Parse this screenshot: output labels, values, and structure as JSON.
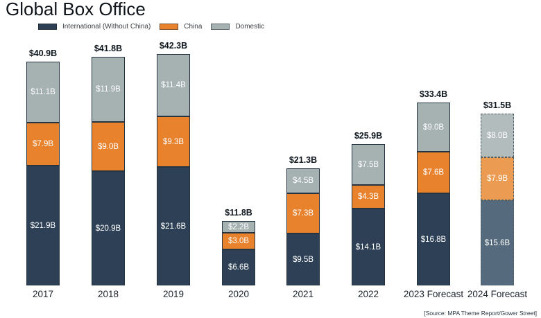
{
  "title": "Global Box Office",
  "source_note": "[Source: MPA Theme Report/Gower Street]",
  "colors": {
    "international": "#2d4055",
    "china": "#e8822d",
    "domestic": "#a6b1b2",
    "international_forecast": "#556b7d",
    "china_forecast": "#ec9c52",
    "domestic_forecast": "#b2bcbd",
    "background": "#ffffff"
  },
  "legend": [
    {
      "label": "International (Without China)",
      "color": "#2d4055"
    },
    {
      "label": "China",
      "color": "#e8822d"
    },
    {
      "label": "Domestic",
      "color": "#a6b1b2"
    }
  ],
  "chart_data": {
    "type": "bar",
    "stacked": true,
    "title": "Global Box Office",
    "xlabel": "",
    "ylabel": "",
    "units": "USD billions",
    "y_axis_visible": false,
    "grid": false,
    "legend_position": "top-left",
    "categories": [
      "2017",
      "2018",
      "2019",
      "2020",
      "2021",
      "2022",
      "2023 Forecast",
      "2024 Forecast"
    ],
    "is_forecast_style": [
      false,
      false,
      false,
      false,
      false,
      false,
      false,
      true
    ],
    "series": [
      {
        "key": "international",
        "name": "International (Without China)",
        "color": "#2d4055",
        "forecast_color": "#556b7d",
        "values": [
          21.9,
          20.9,
          21.6,
          6.6,
          9.5,
          14.1,
          16.8,
          15.6
        ],
        "labels": [
          "$21.9B",
          "$20.9B",
          "$21.6B",
          "$6.6B",
          "$9.5B",
          "$14.1B",
          "$16.8B",
          "$15.6B"
        ]
      },
      {
        "key": "china",
        "name": "China",
        "color": "#e8822d",
        "forecast_color": "#ec9c52",
        "values": [
          7.9,
          9.0,
          9.3,
          3.0,
          7.3,
          4.3,
          7.6,
          7.9
        ],
        "labels": [
          "$7.9B",
          "$9.0B",
          "$9.3B",
          "$3.0B",
          "$7.3B",
          "$4.3B",
          "$7.6B",
          "$7.9B"
        ]
      },
      {
        "key": "domestic",
        "name": "Domestic",
        "color": "#a6b1b2",
        "forecast_color": "#b2bcbd",
        "values": [
          11.1,
          11.9,
          11.4,
          2.2,
          4.5,
          7.5,
          9.0,
          8.0
        ],
        "labels": [
          "$11.1B",
          "$11.9B",
          "$11.4B",
          "$2.2B",
          "$4.5B",
          "$7.5B",
          "$9.0B",
          "$8.0B"
        ]
      }
    ],
    "totals": [
      40.9,
      41.8,
      42.3,
      11.8,
      21.3,
      25.9,
      33.4,
      31.5
    ],
    "total_labels": [
      "$40.9B",
      "$41.8B",
      "$42.3B",
      "$11.8B",
      "$21.3B",
      "$25.9B",
      "$33.4B",
      "$31.5B"
    ]
  }
}
